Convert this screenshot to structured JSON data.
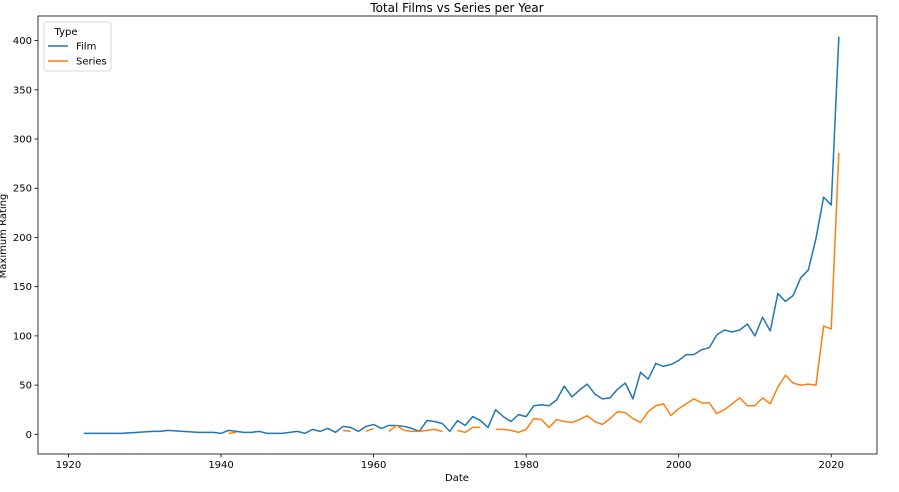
{
  "chart_data": {
    "type": "line",
    "title": "Total Films vs Series per Year",
    "xlabel": "Date",
    "ylabel": "Maximum Rating",
    "xlim": [
      1916,
      2026
    ],
    "ylim": [
      -20,
      425
    ],
    "xticks": [
      1920,
      1940,
      1960,
      1980,
      2000,
      2020
    ],
    "yticks": [
      0,
      50,
      100,
      150,
      200,
      250,
      300,
      350,
      400
    ],
    "grid": false,
    "legend": {
      "title": "Type",
      "placement": "upper-left",
      "entries": [
        "Film",
        "Series"
      ]
    },
    "series": [
      {
        "name": "Film",
        "color": "#1f77b4",
        "points": [
          [
            1922,
            1
          ],
          [
            1923,
            1
          ],
          [
            1924,
            1
          ],
          [
            1925,
            1
          ],
          [
            1926,
            1
          ],
          [
            1927,
            1
          ],
          [
            1928,
            1.5
          ],
          [
            1929,
            2
          ],
          [
            1930,
            2.5
          ],
          [
            1931,
            3
          ],
          [
            1932,
            3
          ],
          [
            1933,
            4
          ],
          [
            1934,
            3.5
          ],
          [
            1935,
            3
          ],
          [
            1936,
            2.5
          ],
          [
            1937,
            2
          ],
          [
            1938,
            2
          ],
          [
            1939,
            2
          ],
          [
            1940,
            1
          ],
          [
            1941,
            4
          ],
          [
            1942,
            3
          ],
          [
            1943,
            2
          ],
          [
            1944,
            2
          ],
          [
            1945,
            3
          ],
          [
            1946,
            1
          ],
          [
            1947,
            1
          ],
          [
            1948,
            1
          ],
          [
            1949,
            2
          ],
          [
            1950,
            3
          ],
          [
            1951,
            1
          ],
          [
            1952,
            5
          ],
          [
            1953,
            3
          ],
          [
            1954,
            6
          ],
          [
            1955,
            2
          ],
          [
            1956,
            8
          ],
          [
            1957,
            7
          ],
          [
            1958,
            3
          ],
          [
            1959,
            8
          ],
          [
            1960,
            10
          ],
          [
            1961,
            6
          ],
          [
            1962,
            9
          ],
          [
            1963,
            9
          ],
          [
            1964,
            8
          ],
          [
            1965,
            6
          ],
          [
            1966,
            3
          ],
          [
            1967,
            14
          ],
          [
            1968,
            13
          ],
          [
            1969,
            11
          ],
          [
            1970,
            3
          ],
          [
            1971,
            14
          ],
          [
            1972,
            9
          ],
          [
            1973,
            18
          ],
          [
            1974,
            14
          ],
          [
            1975,
            7
          ],
          [
            1976,
            25
          ],
          [
            1977,
            18
          ],
          [
            1978,
            13
          ],
          [
            1979,
            20
          ],
          [
            1980,
            18
          ],
          [
            1981,
            29
          ],
          [
            1982,
            30
          ],
          [
            1983,
            29
          ],
          [
            1984,
            35
          ],
          [
            1985,
            49
          ],
          [
            1986,
            38
          ],
          [
            1987,
            45
          ],
          [
            1988,
            51
          ],
          [
            1989,
            41
          ],
          [
            1990,
            36
          ],
          [
            1991,
            37
          ],
          [
            1992,
            46
          ],
          [
            1993,
            52
          ],
          [
            1994,
            36
          ],
          [
            1995,
            63
          ],
          [
            1996,
            56
          ],
          [
            1997,
            72
          ],
          [
            1998,
            69
          ],
          [
            1999,
            71
          ],
          [
            2000,
            75
          ],
          [
            2001,
            81
          ],
          [
            2002,
            81
          ],
          [
            2003,
            86
          ],
          [
            2004,
            88
          ],
          [
            2005,
            101
          ],
          [
            2006,
            106
          ],
          [
            2007,
            104
          ],
          [
            2008,
            106
          ],
          [
            2009,
            112
          ],
          [
            2010,
            100
          ],
          [
            2011,
            119
          ],
          [
            2012,
            105
          ],
          [
            2013,
            143
          ],
          [
            2014,
            135
          ],
          [
            2015,
            141
          ],
          [
            2016,
            159
          ],
          [
            2017,
            167
          ],
          [
            2018,
            199
          ],
          [
            2019,
            241
          ],
          [
            2020,
            233
          ],
          [
            2021,
            404
          ]
        ]
      },
      {
        "name": "Series",
        "color": "#ff7f0e",
        "segments": [
          [
            [
              1941,
              1
            ],
            [
              1942,
              2
            ]
          ],
          [
            [
              1956,
              4
            ],
            [
              1957,
              3
            ]
          ],
          [
            [
              1959,
              3
            ],
            [
              1960,
              6
            ]
          ],
          [
            [
              1962,
              3
            ],
            [
              1963,
              9
            ],
            [
              1964,
              4
            ],
            [
              1965,
              3
            ],
            [
              1966,
              3
            ],
            [
              1967,
              4
            ],
            [
              1968,
              5
            ],
            [
              1969,
              3
            ]
          ],
          [
            [
              1971,
              4
            ],
            [
              1972,
              2
            ],
            [
              1973,
              7
            ],
            [
              1974,
              7
            ]
          ],
          [
            [
              1976,
              5
            ],
            [
              1977,
              5
            ],
            [
              1978,
              4
            ],
            [
              1979,
              2
            ],
            [
              1980,
              5
            ],
            [
              1981,
              16
            ],
            [
              1982,
              15
            ],
            [
              1983,
              7
            ],
            [
              1984,
              15
            ],
            [
              1985,
              13
            ],
            [
              1986,
              12
            ],
            [
              1987,
              15
            ],
            [
              1988,
              19
            ],
            [
              1989,
              13
            ],
            [
              1990,
              10
            ],
            [
              1991,
              16
            ],
            [
              1992,
              23
            ],
            [
              1993,
              22
            ],
            [
              1994,
              16
            ],
            [
              1995,
              12
            ],
            [
              1996,
              23
            ],
            [
              1997,
              29
            ],
            [
              1998,
              31
            ],
            [
              1999,
              19
            ],
            [
              2000,
              26
            ],
            [
              2001,
              31
            ],
            [
              2002,
              36
            ],
            [
              2003,
              32
            ],
            [
              2004,
              32
            ],
            [
              2005,
              21
            ],
            [
              2006,
              25
            ],
            [
              2007,
              31
            ],
            [
              2008,
              37
            ],
            [
              2009,
              29
            ],
            [
              2010,
              29
            ],
            [
              2011,
              37
            ],
            [
              2012,
              31
            ],
            [
              2013,
              48
            ],
            [
              2014,
              60
            ],
            [
              2015,
              52
            ],
            [
              2016,
              50
            ],
            [
              2017,
              51
            ],
            [
              2018,
              50
            ],
            [
              2019,
              110
            ],
            [
              2020,
              107
            ],
            [
              2021,
              286
            ]
          ]
        ]
      }
    ]
  }
}
